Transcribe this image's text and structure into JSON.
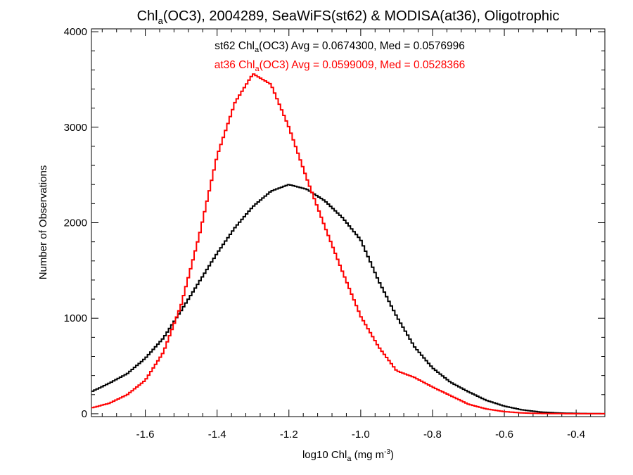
{
  "chart_data": {
    "type": "line",
    "title_parts": [
      "Chl",
      "a",
      "(OC3), 2004289, SeaWiFS(st62) & MODISA(at36), Oligotrophic"
    ],
    "xlabel_parts": [
      "log10 Chl",
      "a",
      " (mg m",
      "-3",
      ")"
    ],
    "ylabel": "Number of Observations",
    "xlim": [
      -1.75,
      -0.32
    ],
    "ylim": [
      -30,
      4030
    ],
    "x_ticks": [
      "-1.6",
      "-1.4",
      "-1.2",
      "-1.0",
      "-0.8",
      "-0.6",
      "-0.4"
    ],
    "y_ticks": [
      "0",
      "1000",
      "2000",
      "3000",
      "4000"
    ],
    "annotations": [
      {
        "color": "#000000",
        "parts": [
          "st62 Chl",
          "a",
          "(OC3) Avg = 0.0674300, Med = 0.0576996"
        ]
      },
      {
        "color": "#ff0000",
        "parts": [
          "at36 Chl",
          "a",
          "(OC3) Avg = 0.0599009, Med = 0.0528366"
        ]
      }
    ],
    "series": [
      {
        "color": "#000000",
        "points": [
          [
            -1.75,
            230
          ],
          [
            -1.7,
            320
          ],
          [
            -1.65,
            420
          ],
          [
            -1.6,
            580
          ],
          [
            -1.55,
            790
          ],
          [
            -1.5,
            1080
          ],
          [
            -1.45,
            1380
          ],
          [
            -1.4,
            1680
          ],
          [
            -1.35,
            1950
          ],
          [
            -1.3,
            2170
          ],
          [
            -1.25,
            2330
          ],
          [
            -1.2,
            2400
          ],
          [
            -1.15,
            2350
          ],
          [
            -1.1,
            2230
          ],
          [
            -1.05,
            2050
          ],
          [
            -1.0,
            1820
          ],
          [
            -0.95,
            1390
          ],
          [
            -0.9,
            1020
          ],
          [
            -0.85,
            700
          ],
          [
            -0.8,
            480
          ],
          [
            -0.75,
            330
          ],
          [
            -0.7,
            230
          ],
          [
            -0.65,
            140
          ],
          [
            -0.6,
            80
          ],
          [
            -0.55,
            40
          ],
          [
            -0.5,
            18
          ],
          [
            -0.45,
            8
          ],
          [
            -0.4,
            3
          ],
          [
            -0.32,
            0
          ]
        ]
      },
      {
        "color": "#ff0000",
        "points": [
          [
            -1.75,
            60
          ],
          [
            -1.7,
            110
          ],
          [
            -1.65,
            200
          ],
          [
            -1.6,
            350
          ],
          [
            -1.55,
            640
          ],
          [
            -1.5,
            1140
          ],
          [
            -1.45,
            1860
          ],
          [
            -1.4,
            2700
          ],
          [
            -1.35,
            3260
          ],
          [
            -1.3,
            3560
          ],
          [
            -1.25,
            3450
          ],
          [
            -1.2,
            3000
          ],
          [
            -1.15,
            2460
          ],
          [
            -1.1,
            1960
          ],
          [
            -1.05,
            1480
          ],
          [
            -1.0,
            1020
          ],
          [
            -0.95,
            700
          ],
          [
            -0.9,
            450
          ],
          [
            -0.85,
            380
          ],
          [
            -0.8,
            280
          ],
          [
            -0.75,
            190
          ],
          [
            -0.7,
            100
          ],
          [
            -0.65,
            50
          ],
          [
            -0.6,
            22
          ],
          [
            -0.55,
            8
          ],
          [
            -0.5,
            3
          ],
          [
            -0.45,
            1
          ],
          [
            -0.4,
            0
          ],
          [
            -0.32,
            0
          ]
        ]
      }
    ]
  }
}
